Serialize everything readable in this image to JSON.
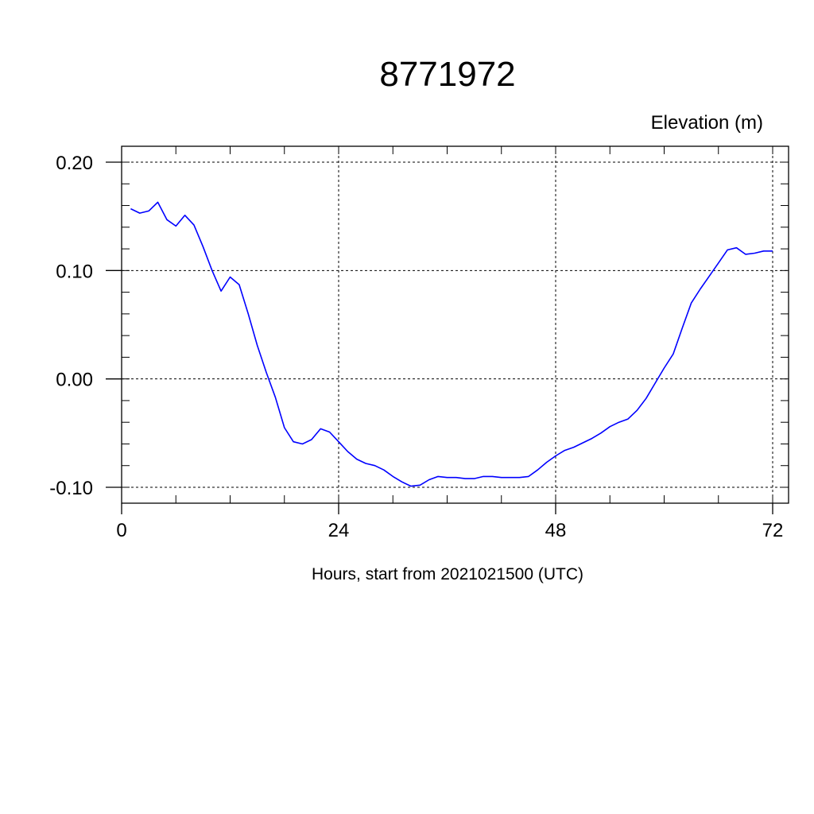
{
  "chart_data": {
    "type": "line",
    "title": "8771972",
    "units_label": "Elevation (m)",
    "xlabel": "Hours, start from 2021021500 (UTC)",
    "ylabel": "",
    "xlim": [
      0,
      72
    ],
    "ylim": [
      -0.1,
      0.2
    ],
    "x_ticks": [
      0,
      24,
      48,
      72
    ],
    "x_tick_labels": [
      "0",
      "24",
      "48",
      "72"
    ],
    "x_minor_step": 6,
    "y_ticks": [
      -0.1,
      0.0,
      0.1,
      0.2
    ],
    "y_tick_labels": [
      "-0.10",
      "0.00",
      "0.10",
      "0.20"
    ],
    "y_minor_step": 0.02,
    "grid": "dashed at major ticks",
    "series": [
      {
        "color": "#0000ff",
        "x": [
          1,
          2,
          3,
          4,
          5,
          6,
          7,
          8,
          9,
          10,
          11,
          12,
          13,
          14,
          15,
          16,
          17,
          18,
          19,
          20,
          21,
          22,
          23,
          24,
          25,
          26,
          27,
          28,
          29,
          30,
          31,
          32,
          33,
          34,
          35,
          36,
          37,
          38,
          39,
          40,
          41,
          42,
          43,
          44,
          45,
          46,
          47,
          48,
          49,
          50,
          51,
          52,
          53,
          54,
          55,
          56,
          57,
          58,
          59,
          60,
          61,
          62,
          63,
          64,
          65,
          66,
          67,
          68,
          69,
          70,
          71,
          72
        ],
        "y": [
          0.157,
          0.153,
          0.155,
          0.163,
          0.147,
          0.141,
          0.151,
          0.142,
          0.122,
          0.1,
          0.081,
          0.094,
          0.087,
          0.06,
          0.031,
          0.006,
          -0.017,
          -0.045,
          -0.058,
          -0.06,
          -0.056,
          -0.046,
          -0.049,
          -0.058,
          -0.067,
          -0.074,
          -0.078,
          -0.08,
          -0.084,
          -0.09,
          -0.095,
          -0.099,
          -0.098,
          -0.093,
          -0.09,
          -0.091,
          -0.091,
          -0.092,
          -0.092,
          -0.09,
          -0.09,
          -0.091,
          -0.091,
          -0.091,
          -0.09,
          -0.084,
          -0.077,
          -0.071,
          -0.066,
          -0.063,
          -0.059,
          -0.055,
          -0.05,
          -0.044,
          -0.04,
          -0.037,
          -0.029,
          -0.018,
          -0.004,
          0.01,
          0.023,
          0.047,
          0.07,
          0.083,
          0.095,
          0.107,
          0.119,
          0.121,
          0.115,
          0.116,
          0.118,
          0.118
        ]
      }
    ]
  }
}
